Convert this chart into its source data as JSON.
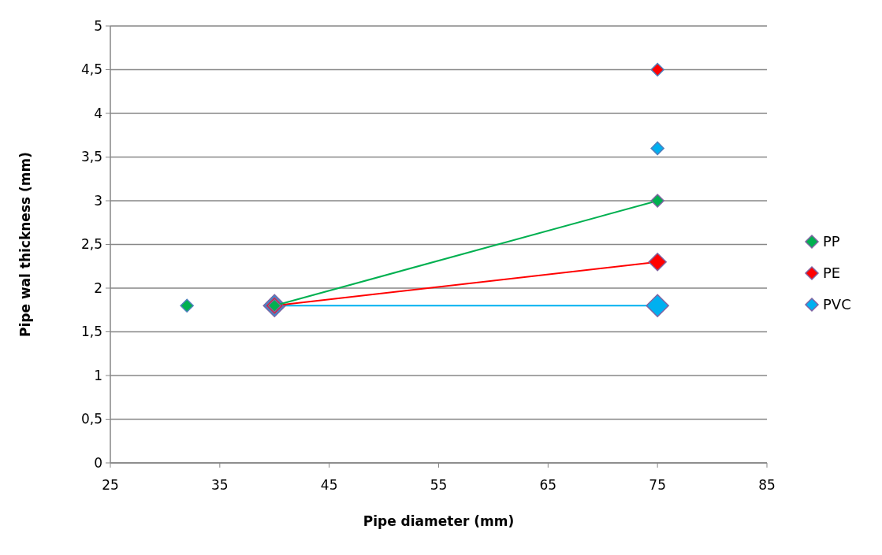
{
  "chart_data": {
    "type": "line",
    "xlabel": "Pipe diameter (mm)",
    "ylabel": "Pipe wal thickness (mm)",
    "xlim": [
      25,
      85
    ],
    "xticks": [
      25,
      35,
      45,
      55,
      65,
      75,
      85
    ],
    "ylim": [
      0,
      5
    ],
    "yticks": [
      0,
      {
        "value": 0.5,
        "label": "0,5"
      },
      1,
      {
        "value": 1.5,
        "label": "1,5"
      },
      2,
      {
        "value": 2.5,
        "label": "2,5"
      },
      3,
      {
        "value": 3.5,
        "label": "3,5"
      },
      4,
      {
        "value": 4.5,
        "label": "4,5"
      },
      5
    ],
    "grid": "y",
    "legend": "right",
    "marker": "diamond",
    "series": [
      {
        "name": "PP",
        "color": "#00b050",
        "x": [
          40,
          75
        ],
        "values": [
          1.8,
          3.0
        ]
      },
      {
        "name": "PE",
        "color": "#ff0000",
        "x": [
          40,
          75
        ],
        "values": [
          1.8,
          2.3
        ]
      },
      {
        "name": "PVC",
        "color": "#00b0f0",
        "x": [
          40,
          75
        ],
        "values": [
          1.8,
          1.8
        ]
      },
      {
        "type": "scatter",
        "colors": [
          "#00b050",
          "#ff0000",
          "#00b0f0"
        ],
        "x": [
          32,
          75,
          75
        ],
        "values": [
          1.8,
          4.5,
          3.6
        ]
      }
    ]
  }
}
